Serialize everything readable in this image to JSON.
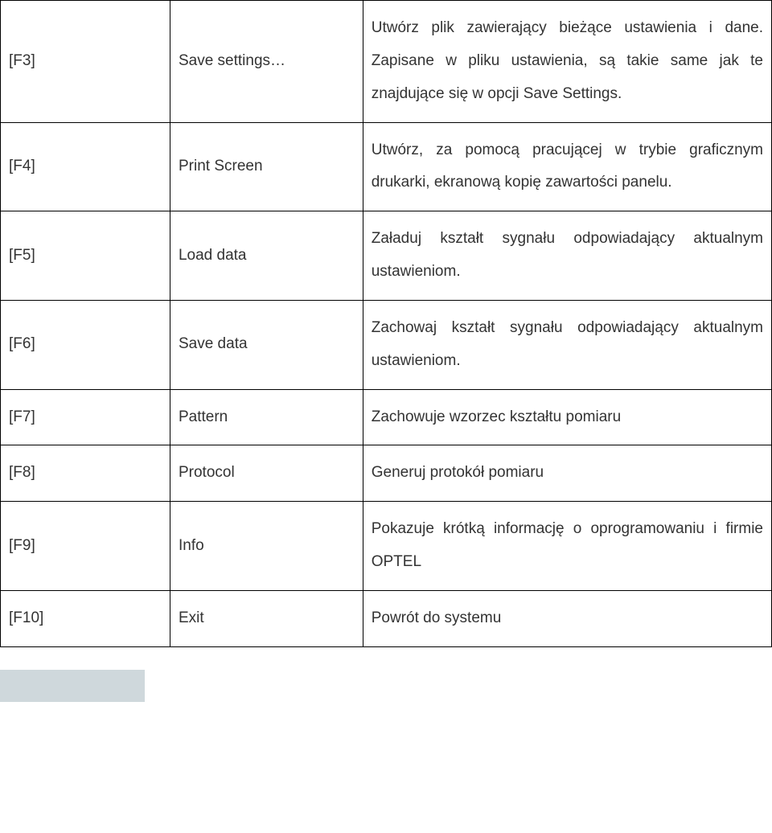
{
  "rows": [
    {
      "key": "[F3]",
      "label": "Save settings…",
      "desc": "Utwórz plik zawierający bieżące ustawienia i dane. Zapisane w pliku ustawienia, są takie same jak te znajdujące się w opcji Save Settings."
    },
    {
      "key": "[F4]",
      "label": "Print Screen",
      "desc": "Utwórz, za pomocą pracującej w trybie graficznym drukarki, ekranową kopię zawartości panelu."
    },
    {
      "key": "[F5]",
      "label": "Load data",
      "desc": "Załaduj kształt sygnału odpowiadający aktualnym ustawieniom."
    },
    {
      "key": "[F6]",
      "label": "Save data",
      "desc": "Zachowaj kształt sygnału odpowiadający aktualnym ustawieniom."
    },
    {
      "key": "[F7]",
      "label": "Pattern",
      "desc": "Zachowuje wzorzec kształtu pomiaru"
    },
    {
      "key": "[F8]",
      "label": "Protocol",
      "desc": "Generuj protokół pomiaru"
    },
    {
      "key": "[F9]",
      "label": "Info",
      "desc": "Pokazuje krótką informację o oprogramowaniu i firmie OPTEL"
    },
    {
      "key": "[F10]",
      "label": "Exit",
      "desc": "Powrót do systemu"
    }
  ],
  "styles": {
    "border_color": "#000000",
    "text_color": "#333333",
    "font_size_pt": 14,
    "line_height": 2.15,
    "bg": "#ffffff",
    "footer_bar_color": "#cfd8dc"
  }
}
